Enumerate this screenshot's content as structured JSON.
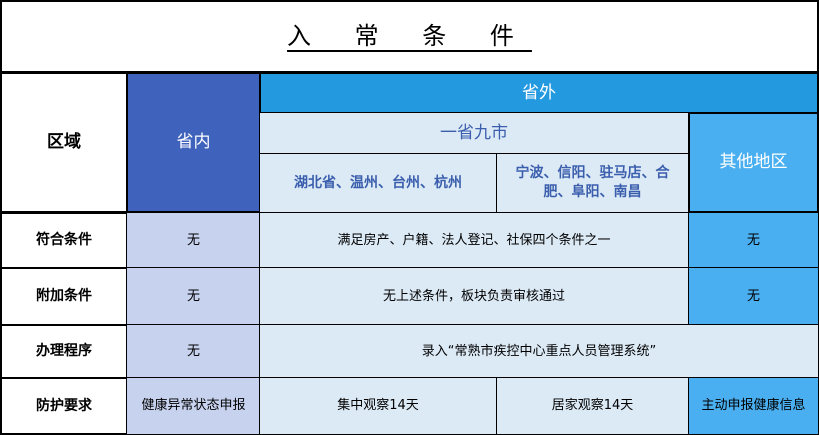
{
  "title": "入 常 条 件",
  "header": {
    "region": "区域",
    "inside": "省内",
    "outside": "省外",
    "nine": "一省九市",
    "group1": "湖北省、温州、台州、杭州",
    "group2": "宁波、信阳、驻马店、合肥、阜阳、南昌",
    "other": "其他地区"
  },
  "rows": [
    {
      "label": "符合条件",
      "inside": "无",
      "mid": "满足房产、户籍、法人登记、社保四个条件之一",
      "other": "无"
    },
    {
      "label": "附加条件",
      "inside": "无",
      "mid": "无上述条件，板块负责审核通过",
      "other": "无"
    },
    {
      "label": "办理程序",
      "inside": "无",
      "mid": "录入“常熟市疾控中心重点人员管理系统”"
    },
    {
      "label": "防护要求",
      "inside": "健康异常状态申报",
      "mid1": "集中观察14天",
      "mid2": "居家观察14天",
      "other": "主动申报健康信息"
    }
  ],
  "colors": {
    "inside_header": "#3f62bd",
    "outside_header": "#2399e0",
    "light": "#dceaf6",
    "other": "#4aaff0",
    "inside_body": "#c7d2ef"
  }
}
